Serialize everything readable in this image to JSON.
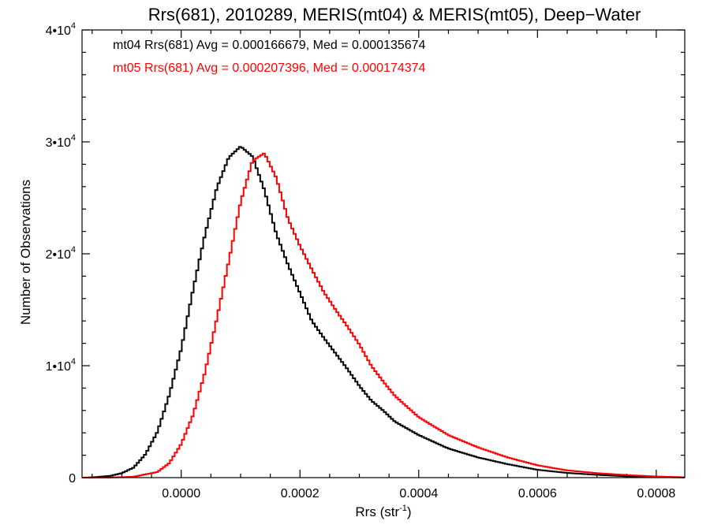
{
  "chart_data": {
    "type": "line",
    "title": "Rrs(681), 2010289, MERIS(mt04) & MERIS(mt05), Deep−Water",
    "xlabel": "Rrs (str⁻¹)",
    "ylabel": "Number of Observations",
    "xlim": [
      -0.000167,
      0.000848
    ],
    "ylim": [
      0,
      40000
    ],
    "x_ticks": [
      {
        "value": 0.0,
        "label": "0.0000"
      },
      {
        "value": 0.0002,
        "label": "0.0002"
      },
      {
        "value": 0.0004,
        "label": "0.0004"
      },
      {
        "value": 0.0006,
        "label": "0.0006"
      },
      {
        "value": 0.0008,
        "label": "0.0008"
      }
    ],
    "y_ticks": [
      {
        "value": 0,
        "mantissa": "0",
        "exp": ""
      },
      {
        "value": 10000,
        "mantissa": "1•10",
        "exp": "4"
      },
      {
        "value": 20000,
        "mantissa": "2•10",
        "exp": "4"
      },
      {
        "value": 30000,
        "mantissa": "3•10",
        "exp": "4"
      },
      {
        "value": 40000,
        "mantissa": "4•10",
        "exp": "4"
      }
    ],
    "grid": false,
    "legend_position": "top-left",
    "series": [
      {
        "legend_text": "mt04 Rrs(681) Avg = 0.000166679, Med = 0.000135674",
        "color": "#000000",
        "x": [
          -0.000167,
          -0.00015,
          -0.00012,
          -0.0001,
          -8e-05,
          -6e-05,
          -4e-05,
          -2e-05,
          0.0,
          2e-05,
          4e-05,
          6e-05,
          8e-05,
          0.0001,
          0.00012,
          0.00014,
          0.00016,
          0.00018,
          0.0002,
          0.00022,
          0.00024,
          0.00026,
          0.00028,
          0.0003,
          0.00032,
          0.00034,
          0.00036,
          0.0004,
          0.00045,
          0.0005,
          0.00055,
          0.0006,
          0.00065,
          0.0007,
          0.00075,
          0.0008,
          0.000848
        ],
        "y": [
          0,
          20,
          150,
          400,
          900,
          2100,
          4100,
          7400,
          11500,
          16800,
          21700,
          25900,
          28600,
          29600,
          28700,
          25700,
          21800,
          19000,
          16500,
          14000,
          12500,
          11100,
          9700,
          8200,
          6900,
          6000,
          5000,
          3800,
          2600,
          1800,
          1200,
          700,
          420,
          250,
          120,
          50,
          20
        ]
      },
      {
        "legend_text": "mt05 Rrs(681) Avg = 0.000207396, Med = 0.000174374",
        "color": "#ff0000",
        "x": [
          -0.000167,
          -0.00012,
          -8e-05,
          -4e-05,
          -2e-05,
          0.0,
          2e-05,
          4e-05,
          6e-05,
          8e-05,
          0.0001,
          0.00012,
          0.00014,
          0.00016,
          0.00018,
          0.0002,
          0.00022,
          0.00024,
          0.00026,
          0.00028,
          0.0003,
          0.00032,
          0.00034,
          0.00036,
          0.0004,
          0.00045,
          0.0005,
          0.00055,
          0.0006,
          0.00065,
          0.0007,
          0.00075,
          0.0008,
          0.000848
        ],
        "y": [
          0,
          10,
          80,
          500,
          1300,
          3000,
          5600,
          9400,
          14200,
          19300,
          24600,
          28300,
          29000,
          26800,
          23100,
          20700,
          18600,
          16600,
          15000,
          13500,
          11900,
          10000,
          8600,
          7300,
          5400,
          3800,
          2700,
          1800,
          1100,
          650,
          400,
          230,
          100,
          30
        ]
      }
    ]
  }
}
